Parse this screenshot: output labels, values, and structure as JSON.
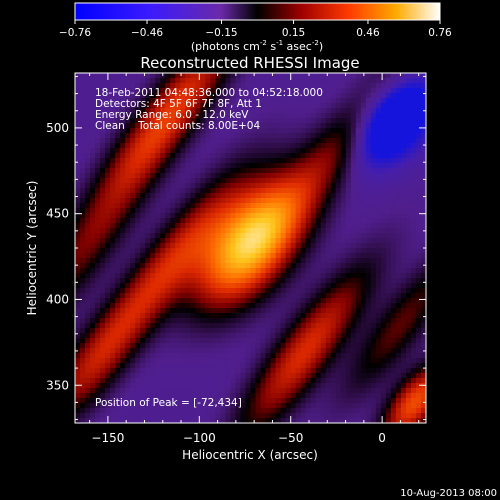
{
  "chart_data": {
    "type": "heatmap",
    "title": "Reconstructed RHESSI Image",
    "colorbar": {
      "ticks": [
        "-0.76",
        "-0.46",
        "-0.15",
        "0.15",
        "0.46",
        "0.76"
      ],
      "tick_values": [
        -0.76,
        -0.46,
        -0.15,
        0.15,
        0.46,
        0.76
      ],
      "range": [
        -0.76,
        0.76
      ],
      "unit_main": "(photons cm",
      "unit_exp1": "-2",
      "unit_mid": " s",
      "unit_exp2": "-1",
      "unit_tail": " asec",
      "unit_exp3": "-2",
      "unit_end": ")",
      "colormap": "RHESSI blue-purple-black-red-yellow-white"
    },
    "xlabel": "Heliocentric X (arcsec)",
    "ylabel": "Heliocentric Y (arcsec)",
    "xlim": [
      -168,
      24
    ],
    "ylim": [
      328,
      532
    ],
    "xticks": [
      {
        "value": -150,
        "label": "−150"
      },
      {
        "value": -100,
        "label": "−100"
      },
      {
        "value": -50,
        "label": "−50"
      },
      {
        "value": 0,
        "label": "0"
      }
    ],
    "yticks": [
      {
        "value": 350,
        "label": "350"
      },
      {
        "value": 400,
        "label": "400"
      },
      {
        "value": 450,
        "label": "450"
      },
      {
        "value": 500,
        "label": "500"
      }
    ],
    "annotations": [
      "18-Feb-2011 04:48:36.000 to 04:52:18.000",
      "Detectors: 4F 5F 6F 7F 8F, Att 1",
      "Energy Range: 6.0 - 12.0 keV",
      "Clean    Total counts: 8.00E+04"
    ],
    "peak_label": "Position of Peak = [-72,434]",
    "peak": {
      "x": -72,
      "y": 434,
      "value": 0.76
    },
    "features": [
      {
        "kind": "peak",
        "x": -72,
        "y": 434,
        "amplitude": 1.0,
        "sx": 15,
        "sy": 28
      },
      {
        "kind": "ridge",
        "x": -118,
        "y": 505,
        "amplitude": 0.55,
        "sx": 10,
        "sy": 45
      },
      {
        "kind": "ridge",
        "x": -120,
        "y": 415,
        "amplitude": 0.45,
        "sx": 10,
        "sy": 45
      },
      {
        "kind": "ridge",
        "x": -42,
        "y": 370,
        "amplitude": 0.5,
        "sx": 10,
        "sy": 40
      },
      {
        "kind": "ridge",
        "x": -20,
        "y": 495,
        "amplitude": 0.32,
        "sx": 10,
        "sy": 45
      },
      {
        "kind": "ridge",
        "x": -165,
        "y": 425,
        "amplitude": 0.25,
        "sx": 10,
        "sy": 40
      },
      {
        "kind": "ridge",
        "x": 10,
        "y": 385,
        "amplitude": 0.28,
        "sx": 9,
        "sy": 35
      },
      {
        "kind": "ridge",
        "x": 18,
        "y": 340,
        "amplitude": 0.6,
        "sx": 8,
        "sy": 18
      },
      {
        "kind": "ridge",
        "x": -160,
        "y": 360,
        "amplitude": 0.3,
        "sx": 10,
        "sy": 30
      },
      {
        "kind": "dip",
        "x": 5,
        "y": 505,
        "amplitude": -0.45,
        "sx": 12,
        "sy": 20
      }
    ]
  },
  "footer": {
    "date": "10-Aug-2013 08:00"
  }
}
